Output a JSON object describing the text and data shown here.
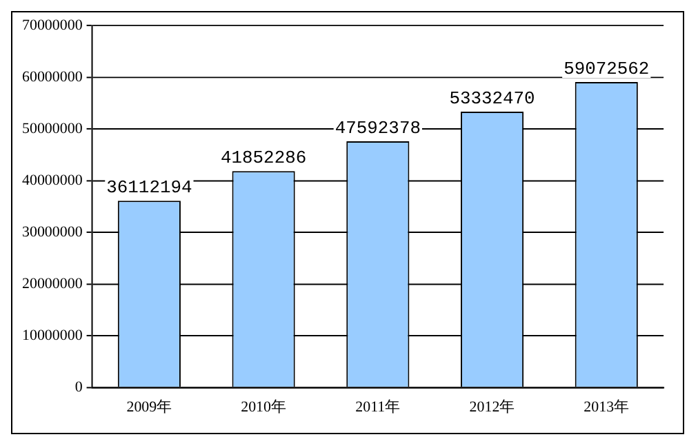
{
  "chart_data": {
    "type": "bar",
    "categories": [
      "2009年",
      "2010年",
      "2011年",
      "2012年",
      "2013年"
    ],
    "values": [
      36112194,
      41852286,
      47592378,
      53332470,
      59072562
    ],
    "color": "#99ccff",
    "ylim": [
      0,
      70000000
    ],
    "yticks": [
      0,
      10000000,
      20000000,
      30000000,
      40000000,
      50000000,
      60000000,
      70000000
    ],
    "grid": "y",
    "data_labels": true,
    "legend": false
  }
}
